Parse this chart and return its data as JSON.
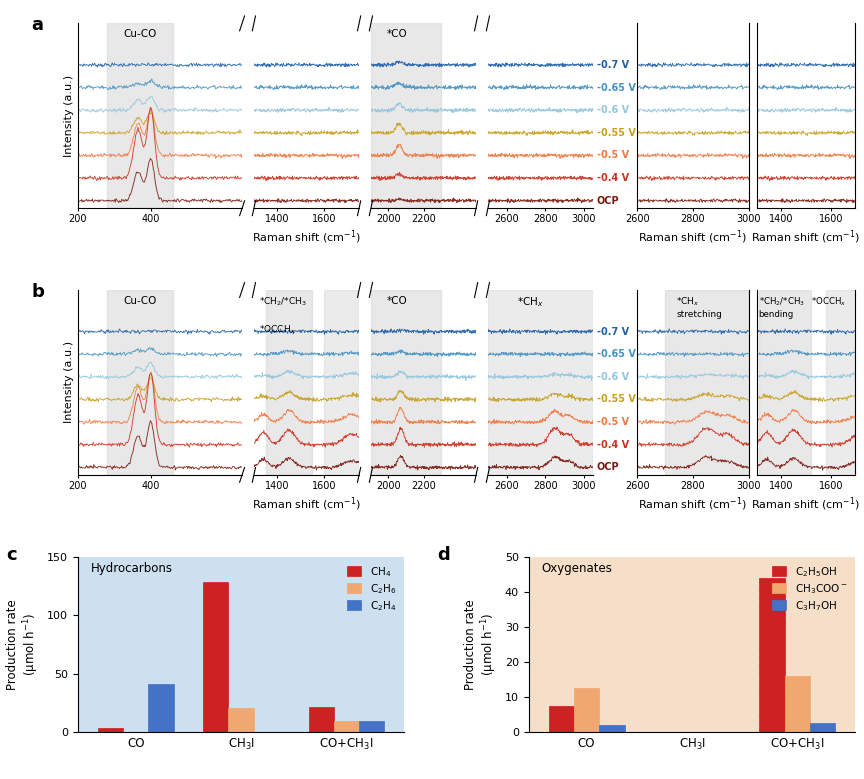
{
  "voltages": [
    "-0.7 V",
    "-0.65 V",
    "-0.6 V",
    "-0.55 V",
    "-0.5 V",
    "-0.4 V",
    "OCP"
  ],
  "colors": [
    "#1f5fa6",
    "#4393c3",
    "#92c5de",
    "#c8a020",
    "#f07840",
    "#cc3020",
    "#7a1a10"
  ],
  "bar_c_categories": [
    "CO",
    "CH$_3$I",
    "CO+CH$_3$I"
  ],
  "bar_c_ch4": [
    4,
    128,
    22
  ],
  "bar_c_c2h6": [
    0,
    21,
    10
  ],
  "bar_c_c2h4": [
    41,
    0,
    10
  ],
  "bar_d_categories": [
    "CO",
    "CH$_3$I",
    "CO+CH$_3$I"
  ],
  "bar_d_c2h5oh": [
    7.5,
    0,
    44
  ],
  "bar_d_ch3coo": [
    12.5,
    0,
    16
  ],
  "bar_d_c3h7oh": [
    2,
    0,
    2.5
  ],
  "bg_color_c": "#cce0f0",
  "bg_color_d": "#f5dfc8"
}
